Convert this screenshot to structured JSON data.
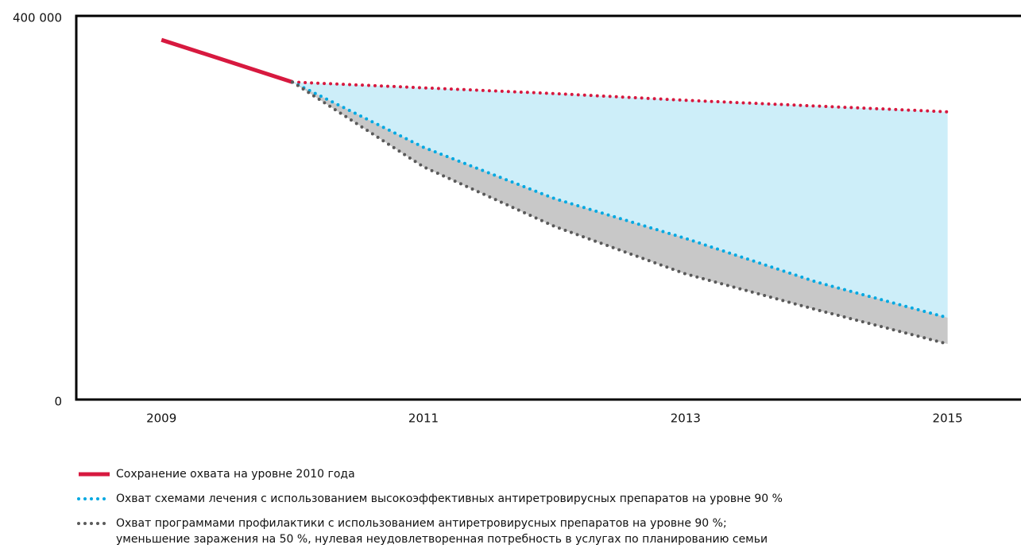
{
  "chart_data": {
    "type": "line",
    "x": [
      2009,
      2010,
      2011,
      2012,
      2013,
      2014,
      2015
    ],
    "series": [
      {
        "name": "Сохранение охвата на уровне 2010 года",
        "color": "#d7193f",
        "values": [
          375000,
          331000,
          325000,
          319000,
          312000,
          306000,
          300000
        ]
      },
      {
        "name": "Охват схемами лечения с использованием высокоэффективных антиретровирусных препаратов на уровне 90 %",
        "color": "#00a8e1",
        "fill": "#cdeef9",
        "values": [
          null,
          331000,
          263000,
          209500,
          168000,
          122500,
          85300
        ]
      },
      {
        "name": "Охват программами профилактики с использованием антиретровирусных препаратов на уровне 90 %;\nуменьшение заражения на 50 %, нулевая неудовлетворенная потребность в услугах по планированию семьи",
        "color": "#5a5a5a",
        "fill": "#c8c8c8",
        "values": [
          null,
          331000,
          242600,
          180500,
          131000,
          93600,
          58000
        ]
      }
    ],
    "xlim": [
      2008.35,
      2015.56
    ],
    "xticks": [
      2009,
      2011,
      2013,
      2015
    ],
    "ylim": [
      0,
      400000
    ],
    "yticks": [
      0,
      {
        "value": 400000,
        "label": "400 000"
      }
    ]
  }
}
